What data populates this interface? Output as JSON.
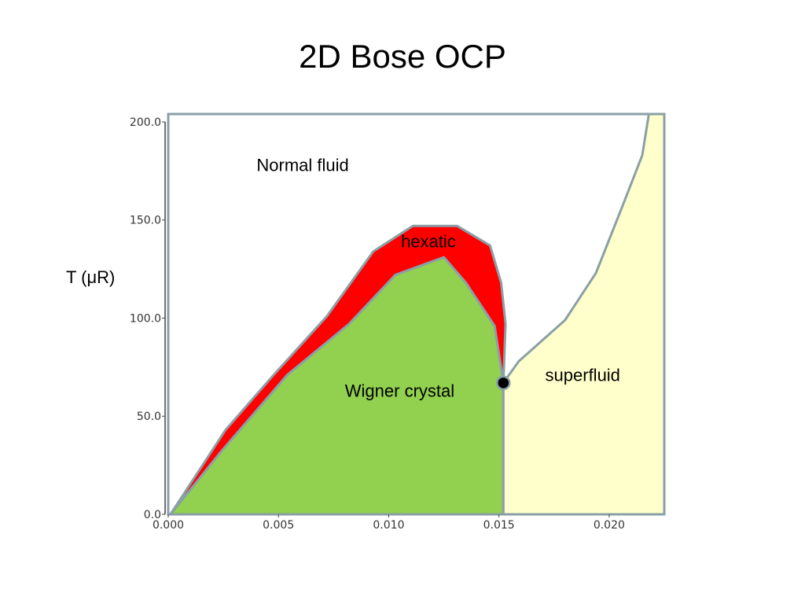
{
  "slide": {
    "title": "2D Bose OCP"
  },
  "chart_data": {
    "type": "area",
    "title": "2D Bose OCP",
    "xlabel": "",
    "ylabel": "T (μR)",
    "xlim": [
      0.0,
      0.0225
    ],
    "ylim": [
      0.0,
      204.0
    ],
    "grid": false,
    "x_ticks": [
      {
        "value": 0.0,
        "label": "0.000"
      },
      {
        "value": 0.005,
        "label": "0.005"
      },
      {
        "value": 0.01,
        "label": "0.010"
      },
      {
        "value": 0.015,
        "label": "0.015"
      },
      {
        "value": 0.02,
        "label": "0.020"
      }
    ],
    "y_ticks": [
      {
        "value": 0.0,
        "label": "0.0"
      },
      {
        "value": 50.0,
        "label": "50.0"
      },
      {
        "value": 100.0,
        "label": "100.0"
      },
      {
        "value": 150.0,
        "label": "150.0"
      },
      {
        "value": 200.0,
        "label": "200.0"
      }
    ],
    "colors": {
      "hexatic": "#ff0000",
      "wigner": "#92d050",
      "superfluid": "#ffffcc",
      "boundary": "#8aa0a6",
      "frame": "#8aa0a6",
      "point": "#000000"
    },
    "regions": [
      {
        "name": "hexatic",
        "label": "hexatic",
        "label_at": [
          0.0118,
          136
        ],
        "points": [
          [
            0.0001,
            0
          ],
          [
            0.0026,
            43
          ],
          [
            0.0047,
            70
          ],
          [
            0.0072,
            101
          ],
          [
            0.0093,
            134
          ],
          [
            0.0111,
            147
          ],
          [
            0.0131,
            147
          ],
          [
            0.0146,
            137
          ],
          [
            0.0151,
            118
          ],
          [
            0.0153,
            97
          ],
          [
            0.0152,
            67
          ],
          [
            0.0148,
            96
          ],
          [
            0.0135,
            118
          ],
          [
            0.0125,
            131
          ],
          [
            0.0103,
            122
          ],
          [
            0.0082,
            97
          ],
          [
            0.0054,
            71
          ],
          [
            0.0024,
            32
          ],
          [
            0.0001,
            0
          ]
        ]
      },
      {
        "name": "wigner-crystal",
        "label": "Wigner crystal",
        "label_at": [
          0.0105,
          60
        ],
        "points": [
          [
            0.0001,
            0
          ],
          [
            0.0024,
            32
          ],
          [
            0.0054,
            71
          ],
          [
            0.0082,
            97
          ],
          [
            0.0103,
            122
          ],
          [
            0.0125,
            131
          ],
          [
            0.0135,
            118
          ],
          [
            0.0148,
            96
          ],
          [
            0.0152,
            67
          ],
          [
            0.0152,
            0
          ]
        ]
      },
      {
        "name": "superfluid",
        "label": "superfluid",
        "label_at": [
          0.0188,
          68
        ],
        "points": [
          [
            0.0152,
            0
          ],
          [
            0.0152,
            67
          ],
          [
            0.0159,
            78
          ],
          [
            0.018,
            99
          ],
          [
            0.0194,
            123
          ],
          [
            0.0206,
            157
          ],
          [
            0.0215,
            183
          ],
          [
            0.0218,
            204
          ],
          [
            0.0225,
            204
          ],
          [
            0.0225,
            0
          ]
        ]
      }
    ],
    "annotations": [
      {
        "text": "Normal fluid",
        "at": [
          0.0061,
          175
        ]
      }
    ],
    "critical_point": {
      "x": 0.0152,
      "y": 67
    }
  }
}
